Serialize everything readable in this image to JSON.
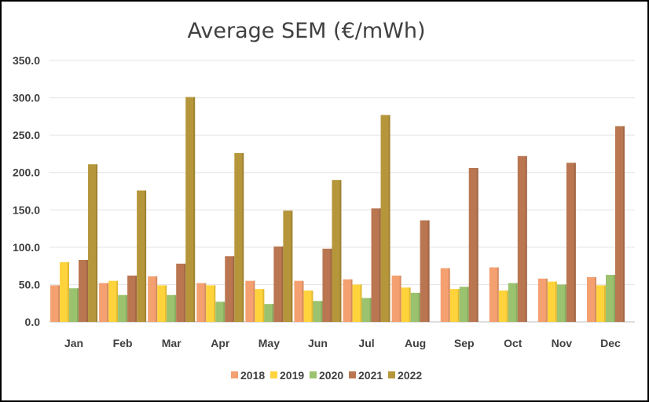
{
  "chart_data": {
    "type": "bar",
    "title": "Average SEM (€/mWh)",
    "xlabel": "",
    "ylabel": "",
    "ylim": [
      0,
      350
    ],
    "yticks": [
      "0.0",
      "50.0",
      "100.0",
      "150.0",
      "200.0",
      "250.0",
      "300.0",
      "350.0"
    ],
    "grid": true,
    "legend_position": "bottom",
    "categories": [
      "Jan",
      "Feb",
      "Mar",
      "Apr",
      "May",
      "Jun",
      "Jul",
      "Aug",
      "Sep",
      "Oct",
      "Nov",
      "Dec"
    ],
    "series": [
      {
        "name": "2018",
        "color": "#F4A071",
        "values": [
          49,
          52,
          61,
          52,
          55,
          55,
          57,
          62,
          72,
          73,
          58,
          60
        ]
      },
      {
        "name": "2019",
        "color": "#FFD33C",
        "values": [
          80,
          55,
          49,
          49,
          44,
          42,
          50,
          46,
          44,
          42,
          54,
          49
        ]
      },
      {
        "name": "2020",
        "color": "#9BC26E",
        "values": [
          45,
          36,
          36,
          27,
          24,
          28,
          32,
          39,
          47,
          52,
          50,
          63
        ]
      },
      {
        "name": "2021",
        "color": "#B97650",
        "values": [
          83,
          62,
          78,
          88,
          101,
          98,
          152,
          136,
          206,
          222,
          213,
          262
        ]
      },
      {
        "name": "2022",
        "color": "#B6963A",
        "values": [
          211,
          176,
          301,
          226,
          149,
          190,
          277,
          null,
          null,
          null,
          null,
          null
        ]
      }
    ]
  }
}
